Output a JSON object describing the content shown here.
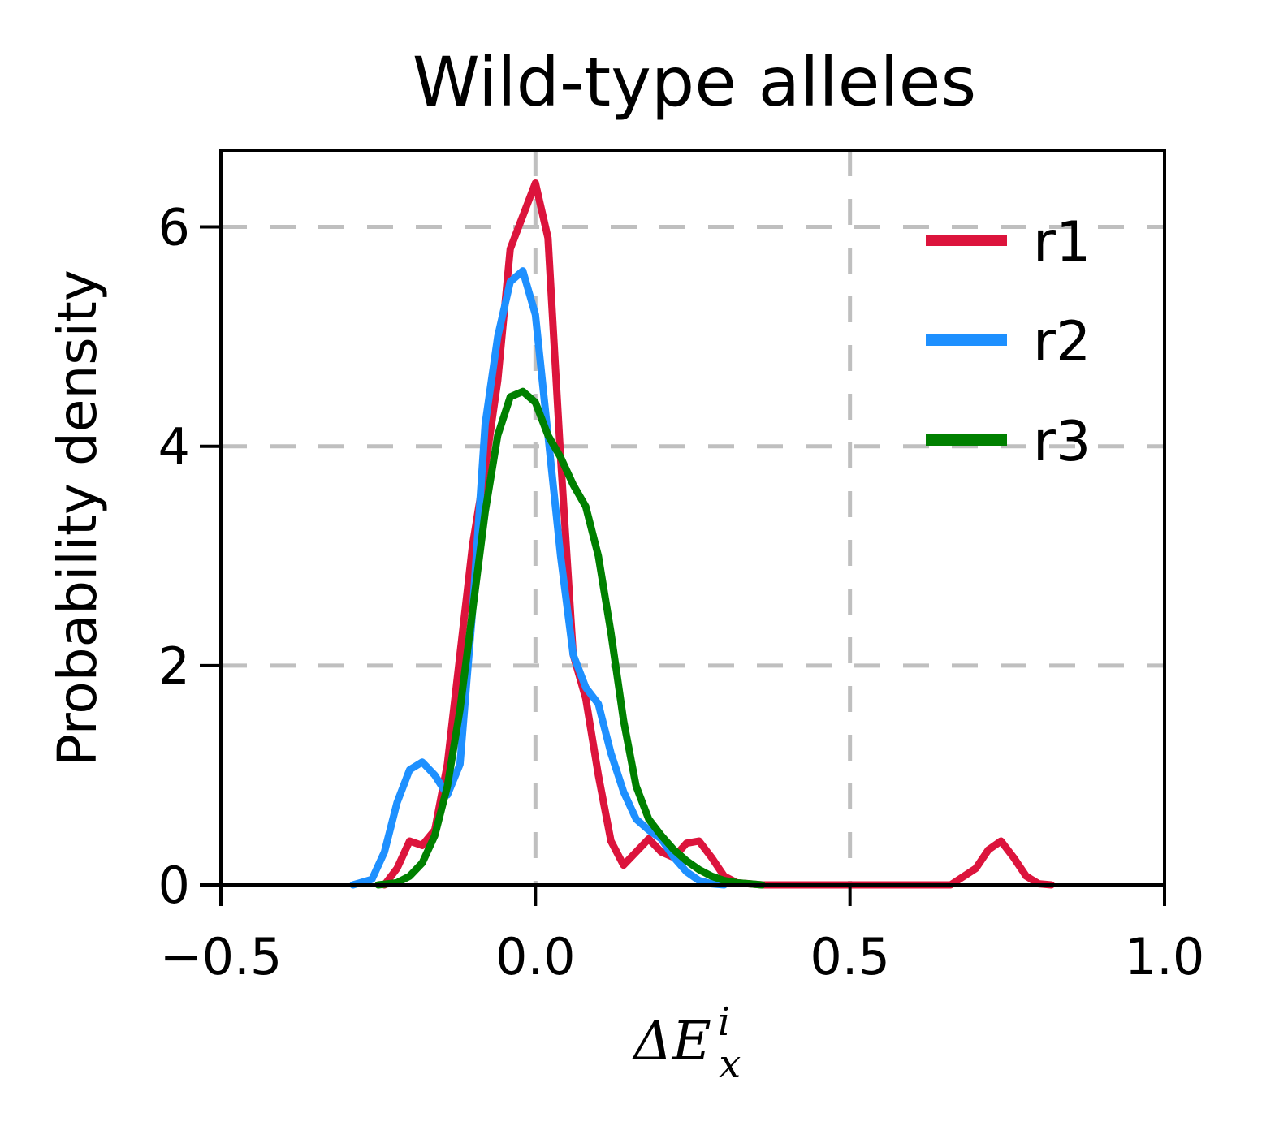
{
  "chart_data": {
    "type": "line",
    "title": "Wild-type alleles",
    "xlabel": "ΔE",
    "xlabel_sup": "i",
    "xlabel_sub": "x",
    "ylabel": "Probability density",
    "xlim": [
      -0.5,
      1.0
    ],
    "ylim": [
      0,
      6.7
    ],
    "xticks": [
      -0.5,
      0.0,
      0.5,
      1.0
    ],
    "xtick_labels": [
      "−0.5",
      "0.0",
      "0.5",
      "1.0"
    ],
    "yticks": [
      0,
      2,
      4,
      6
    ],
    "ytick_labels": [
      "0",
      "2",
      "4",
      "6"
    ],
    "grid": true,
    "grid_style": "dashed",
    "legend_position": "upper-right",
    "series": [
      {
        "name": "r1",
        "color": "#DC143C",
        "x": [
          -0.24,
          -0.22,
          -0.2,
          -0.18,
          -0.16,
          -0.14,
          -0.12,
          -0.1,
          -0.08,
          -0.06,
          -0.04,
          -0.02,
          0.0,
          0.02,
          0.04,
          0.06,
          0.08,
          0.1,
          0.12,
          0.14,
          0.16,
          0.18,
          0.2,
          0.22,
          0.24,
          0.26,
          0.28,
          0.3,
          0.32,
          0.34,
          0.36,
          0.4,
          0.5,
          0.6,
          0.66,
          0.7,
          0.72,
          0.74,
          0.76,
          0.78,
          0.8,
          0.82
        ],
        "y": [
          0.0,
          0.15,
          0.4,
          0.36,
          0.5,
          1.1,
          2.1,
          3.1,
          3.8,
          4.6,
          5.8,
          6.1,
          6.4,
          5.9,
          3.9,
          2.1,
          1.7,
          1.0,
          0.4,
          0.18,
          0.3,
          0.42,
          0.3,
          0.25,
          0.38,
          0.4,
          0.25,
          0.08,
          0.02,
          0.01,
          0.0,
          0.0,
          0.0,
          0.0,
          0.0,
          0.15,
          0.32,
          0.4,
          0.25,
          0.08,
          0.01,
          0.0
        ]
      },
      {
        "name": "r2",
        "color": "#1E90FF",
        "x": [
          -0.29,
          -0.26,
          -0.24,
          -0.22,
          -0.2,
          -0.18,
          -0.16,
          -0.14,
          -0.12,
          -0.1,
          -0.08,
          -0.06,
          -0.04,
          -0.02,
          0.0,
          0.02,
          0.04,
          0.06,
          0.08,
          0.1,
          0.12,
          0.14,
          0.16,
          0.18,
          0.2,
          0.22,
          0.24,
          0.26,
          0.28,
          0.3
        ],
        "y": [
          0.0,
          0.05,
          0.3,
          0.75,
          1.05,
          1.12,
          1.0,
          0.82,
          1.1,
          2.5,
          4.2,
          5.0,
          5.5,
          5.6,
          5.2,
          4.1,
          3.0,
          2.1,
          1.8,
          1.65,
          1.2,
          0.85,
          0.6,
          0.5,
          0.42,
          0.25,
          0.12,
          0.04,
          0.01,
          0.0
        ]
      },
      {
        "name": "r3",
        "color": "#008000",
        "x": [
          -0.25,
          -0.22,
          -0.2,
          -0.18,
          -0.16,
          -0.14,
          -0.12,
          -0.1,
          -0.08,
          -0.06,
          -0.04,
          -0.02,
          0.0,
          0.02,
          0.04,
          0.06,
          0.08,
          0.1,
          0.12,
          0.14,
          0.16,
          0.18,
          0.2,
          0.22,
          0.24,
          0.26,
          0.28,
          0.3,
          0.32,
          0.34,
          0.36
        ],
        "y": [
          0.0,
          0.02,
          0.08,
          0.2,
          0.45,
          0.9,
          1.6,
          2.5,
          3.4,
          4.1,
          4.45,
          4.5,
          4.4,
          4.1,
          3.9,
          3.65,
          3.45,
          3.0,
          2.3,
          1.5,
          0.9,
          0.6,
          0.45,
          0.32,
          0.22,
          0.14,
          0.08,
          0.04,
          0.02,
          0.01,
          0.0
        ]
      }
    ]
  }
}
